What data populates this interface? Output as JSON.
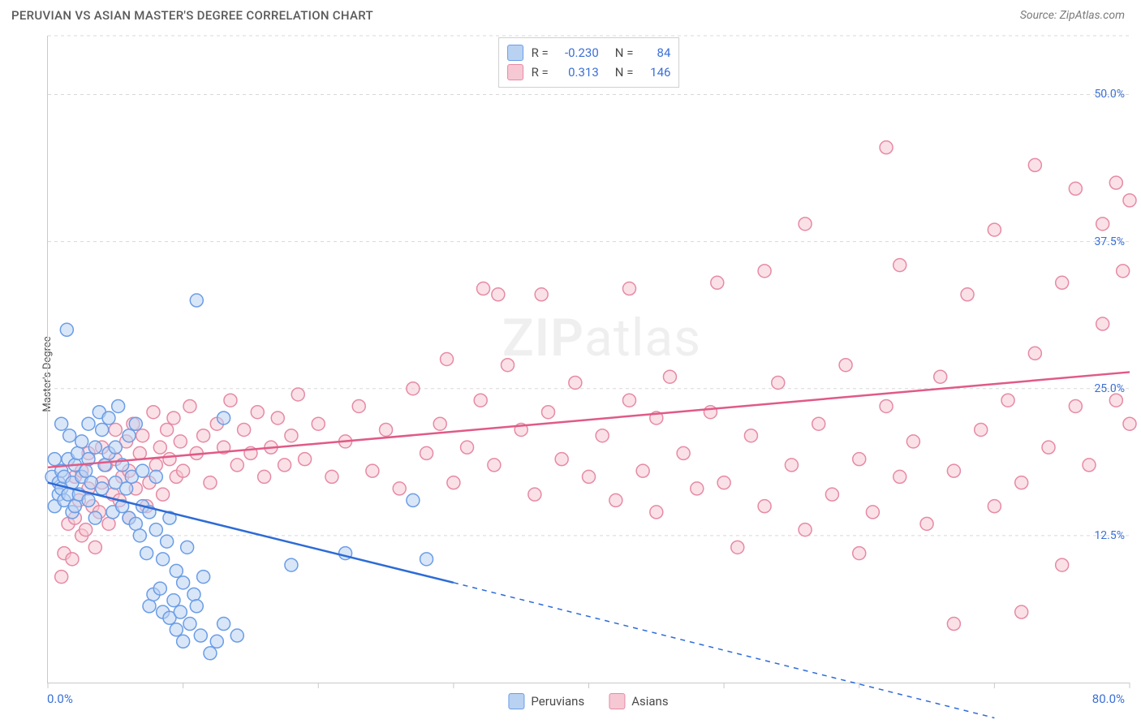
{
  "header": {
    "title": "PERUVIAN VS ASIAN MASTER'S DEGREE CORRELATION CHART",
    "source_prefix": "Source: ",
    "source_name": "ZipAtlas.com"
  },
  "watermark": {
    "bold": "ZIP",
    "rest": "atlas"
  },
  "chart": {
    "type": "scatter",
    "ylabel": "Master's Degree",
    "background_color": "#ffffff",
    "grid_color": "#d8d8d8",
    "axis_color": "#c9c9c9",
    "tick_label_color": "#3b6fd6",
    "xlim": [
      0,
      80
    ],
    "ylim": [
      0,
      55
    ],
    "x_axis": {
      "min_label": "0.0%",
      "max_label": "80.0%",
      "ticks": [
        0,
        10,
        20,
        30,
        40,
        50,
        60,
        70,
        80
      ]
    },
    "y_axis": {
      "gridlines": [
        12.5,
        25.0,
        37.5,
        50.0,
        55.0
      ],
      "labels": [
        {
          "v": 12.5,
          "t": "12.5%"
        },
        {
          "v": 25.0,
          "t": "25.0%"
        },
        {
          "v": 37.5,
          "t": "37.5%"
        },
        {
          "v": 50.0,
          "t": "50.0%"
        }
      ]
    },
    "point_radius": 8,
    "point_stroke_width": 1.5,
    "trend_line_width": 2.5,
    "series": [
      {
        "name": "Peruvians",
        "fill": "#b9d2f2",
        "stroke": "#6a9de6",
        "fill_opacity": 0.55,
        "R": "-0.230",
        "N": "84",
        "trend": {
          "x1": 0,
          "y1": 17.0,
          "x2": 30,
          "y2": 8.5,
          "x2_ext": 70,
          "y2_ext": -3.0,
          "color": "#2d6bd6"
        },
        "points": [
          [
            0.3,
            17.5
          ],
          [
            0.5,
            15.0
          ],
          [
            0.5,
            19.0
          ],
          [
            0.8,
            17.0
          ],
          [
            0.8,
            16.0
          ],
          [
            1.0,
            18.0
          ],
          [
            1.0,
            16.5
          ],
          [
            1.0,
            22.0
          ],
          [
            1.2,
            15.5
          ],
          [
            1.2,
            17.5
          ],
          [
            1.4,
            30.0
          ],
          [
            1.5,
            19.0
          ],
          [
            1.5,
            16.0
          ],
          [
            1.6,
            21.0
          ],
          [
            1.8,
            14.5
          ],
          [
            1.8,
            17.0
          ],
          [
            2.0,
            15.0
          ],
          [
            2.0,
            18.5
          ],
          [
            2.2,
            19.5
          ],
          [
            2.3,
            16.0
          ],
          [
            2.5,
            20.5
          ],
          [
            2.5,
            17.5
          ],
          [
            2.8,
            18.0
          ],
          [
            3.0,
            22.0
          ],
          [
            3.0,
            15.5
          ],
          [
            3.0,
            19.0
          ],
          [
            3.2,
            17.0
          ],
          [
            3.5,
            20.0
          ],
          [
            3.5,
            14.0
          ],
          [
            3.8,
            23.0
          ],
          [
            4.0,
            21.5
          ],
          [
            4.0,
            16.5
          ],
          [
            4.2,
            18.5
          ],
          [
            4.5,
            19.5
          ],
          [
            4.5,
            22.5
          ],
          [
            4.8,
            14.5
          ],
          [
            5.0,
            17.0
          ],
          [
            5.0,
            20.0
          ],
          [
            5.2,
            23.5
          ],
          [
            5.5,
            18.5
          ],
          [
            5.5,
            15.0
          ],
          [
            5.8,
            16.5
          ],
          [
            6.0,
            14.0
          ],
          [
            6.0,
            21.0
          ],
          [
            6.2,
            17.5
          ],
          [
            6.5,
            13.5
          ],
          [
            6.5,
            22.0
          ],
          [
            6.8,
            12.5
          ],
          [
            7.0,
            15.0
          ],
          [
            7.0,
            18.0
          ],
          [
            7.3,
            11.0
          ],
          [
            7.5,
            14.5
          ],
          [
            7.5,
            6.5
          ],
          [
            7.8,
            7.5
          ],
          [
            8.0,
            13.0
          ],
          [
            8.0,
            17.5
          ],
          [
            8.3,
            8.0
          ],
          [
            8.5,
            10.5
          ],
          [
            8.5,
            6.0
          ],
          [
            8.8,
            12.0
          ],
          [
            9.0,
            5.5
          ],
          [
            9.0,
            14.0
          ],
          [
            9.3,
            7.0
          ],
          [
            9.5,
            9.5
          ],
          [
            9.5,
            4.5
          ],
          [
            9.8,
            6.0
          ],
          [
            10.0,
            8.5
          ],
          [
            10.0,
            3.5
          ],
          [
            10.3,
            11.5
          ],
          [
            10.5,
            5.0
          ],
          [
            10.8,
            7.5
          ],
          [
            11.0,
            32.5
          ],
          [
            11.0,
            6.5
          ],
          [
            11.3,
            4.0
          ],
          [
            11.5,
            9.0
          ],
          [
            12.0,
            2.5
          ],
          [
            12.5,
            3.5
          ],
          [
            13.0,
            5.0
          ],
          [
            13.0,
            22.5
          ],
          [
            14.0,
            4.0
          ],
          [
            18.0,
            10.0
          ],
          [
            22.0,
            11.0
          ],
          [
            27.0,
            15.5
          ],
          [
            28.0,
            10.5
          ]
        ]
      },
      {
        "name": "Asians",
        "fill": "#f6c8d4",
        "stroke": "#e68aa4",
        "fill_opacity": 0.55,
        "R": "0.313",
        "N": "146",
        "trend": {
          "x1": 0,
          "y1": 18.3,
          "x2": 80,
          "y2": 26.4,
          "color": "#e05a87"
        },
        "points": [
          [
            1.0,
            9.0
          ],
          [
            1.2,
            11.0
          ],
          [
            1.5,
            13.5
          ],
          [
            1.8,
            10.5
          ],
          [
            2.0,
            14.0
          ],
          [
            2.0,
            17.5
          ],
          [
            2.3,
            15.5
          ],
          [
            2.5,
            12.5
          ],
          [
            2.5,
            18.0
          ],
          [
            2.8,
            13.0
          ],
          [
            3.0,
            16.5
          ],
          [
            3.0,
            19.5
          ],
          [
            3.3,
            15.0
          ],
          [
            3.5,
            11.5
          ],
          [
            3.8,
            14.5
          ],
          [
            4.0,
            17.0
          ],
          [
            4.0,
            20.0
          ],
          [
            4.3,
            18.5
          ],
          [
            4.5,
            13.5
          ],
          [
            4.8,
            16.0
          ],
          [
            5.0,
            19.0
          ],
          [
            5.0,
            21.5
          ],
          [
            5.3,
            15.5
          ],
          [
            5.5,
            17.5
          ],
          [
            5.8,
            20.5
          ],
          [
            6.0,
            14.0
          ],
          [
            6.0,
            18.0
          ],
          [
            6.3,
            22.0
          ],
          [
            6.5,
            16.5
          ],
          [
            6.8,
            19.5
          ],
          [
            7.0,
            21.0
          ],
          [
            7.3,
            15.0
          ],
          [
            7.5,
            17.0
          ],
          [
            7.8,
            23.0
          ],
          [
            8.0,
            18.5
          ],
          [
            8.3,
            20.0
          ],
          [
            8.5,
            16.0
          ],
          [
            8.8,
            21.5
          ],
          [
            9.0,
            19.0
          ],
          [
            9.3,
            22.5
          ],
          [
            9.5,
            17.5
          ],
          [
            9.8,
            20.5
          ],
          [
            10.0,
            18.0
          ],
          [
            10.5,
            23.5
          ],
          [
            11.0,
            19.5
          ],
          [
            11.5,
            21.0
          ],
          [
            12.0,
            17.0
          ],
          [
            12.5,
            22.0
          ],
          [
            13.0,
            20.0
          ],
          [
            13.5,
            24.0
          ],
          [
            14.0,
            18.5
          ],
          [
            14.5,
            21.5
          ],
          [
            15.0,
            19.5
          ],
          [
            15.5,
            23.0
          ],
          [
            16.0,
            17.5
          ],
          [
            16.5,
            20.0
          ],
          [
            17.0,
            22.5
          ],
          [
            17.5,
            18.5
          ],
          [
            18.0,
            21.0
          ],
          [
            18.5,
            24.5
          ],
          [
            19.0,
            19.0
          ],
          [
            20.0,
            22.0
          ],
          [
            21.0,
            17.5
          ],
          [
            22.0,
            20.5
          ],
          [
            23.0,
            23.5
          ],
          [
            24.0,
            18.0
          ],
          [
            25.0,
            21.5
          ],
          [
            26.0,
            16.5
          ],
          [
            27.0,
            25.0
          ],
          [
            28.0,
            19.5
          ],
          [
            29.0,
            22.0
          ],
          [
            29.5,
            27.5
          ],
          [
            30.0,
            17.0
          ],
          [
            31.0,
            20.0
          ],
          [
            32.0,
            24.0
          ],
          [
            32.2,
            33.5
          ],
          [
            33.0,
            18.5
          ],
          [
            33.3,
            33.0
          ],
          [
            34.0,
            27.0
          ],
          [
            35.0,
            21.5
          ],
          [
            36.0,
            16.0
          ],
          [
            36.5,
            33.0
          ],
          [
            37.0,
            23.0
          ],
          [
            38.0,
            19.0
          ],
          [
            39.0,
            25.5
          ],
          [
            40.0,
            17.5
          ],
          [
            41.0,
            21.0
          ],
          [
            42.0,
            15.5
          ],
          [
            43.0,
            24.0
          ],
          [
            43.0,
            33.5
          ],
          [
            44.0,
            18.0
          ],
          [
            45.0,
            22.5
          ],
          [
            45.0,
            14.5
          ],
          [
            46.0,
            26.0
          ],
          [
            47.0,
            19.5
          ],
          [
            48.0,
            16.5
          ],
          [
            49.0,
            23.0
          ],
          [
            49.5,
            34.0
          ],
          [
            50.0,
            17.0
          ],
          [
            51.0,
            11.5
          ],
          [
            52.0,
            21.0
          ],
          [
            53.0,
            15.0
          ],
          [
            53.0,
            35.0
          ],
          [
            54.0,
            25.5
          ],
          [
            55.0,
            18.5
          ],
          [
            56.0,
            13.0
          ],
          [
            56.0,
            39.0
          ],
          [
            57.0,
            22.0
          ],
          [
            58.0,
            16.0
          ],
          [
            59.0,
            27.0
          ],
          [
            60.0,
            19.0
          ],
          [
            60.0,
            11.0
          ],
          [
            61.0,
            14.5
          ],
          [
            62.0,
            23.5
          ],
          [
            62.0,
            45.5
          ],
          [
            63.0,
            17.5
          ],
          [
            63.0,
            35.5
          ],
          [
            64.0,
            20.5
          ],
          [
            65.0,
            13.5
          ],
          [
            66.0,
            26.0
          ],
          [
            67.0,
            18.0
          ],
          [
            67.0,
            5.0
          ],
          [
            68.0,
            33.0
          ],
          [
            69.0,
            21.5
          ],
          [
            70.0,
            15.0
          ],
          [
            70.0,
            38.5
          ],
          [
            71.0,
            24.0
          ],
          [
            72.0,
            17.0
          ],
          [
            72.0,
            6.0
          ],
          [
            73.0,
            28.0
          ],
          [
            73.0,
            44.0
          ],
          [
            74.0,
            20.0
          ],
          [
            75.0,
            34.0
          ],
          [
            75.0,
            10.0
          ],
          [
            76.0,
            23.5
          ],
          [
            76.0,
            42.0
          ],
          [
            77.0,
            18.5
          ],
          [
            78.0,
            30.5
          ],
          [
            78.0,
            39.0
          ],
          [
            79.0,
            42.5
          ],
          [
            79.0,
            24.0
          ],
          [
            79.5,
            35.0
          ],
          [
            80.0,
            41.0
          ],
          [
            80.0,
            22.0
          ]
        ]
      }
    ],
    "bottom_legend": [
      {
        "label": "Peruvians",
        "fill": "#b9d2f2",
        "stroke": "#6a9de6"
      },
      {
        "label": "Asians",
        "fill": "#f6c8d4",
        "stroke": "#e68aa4"
      }
    ]
  }
}
